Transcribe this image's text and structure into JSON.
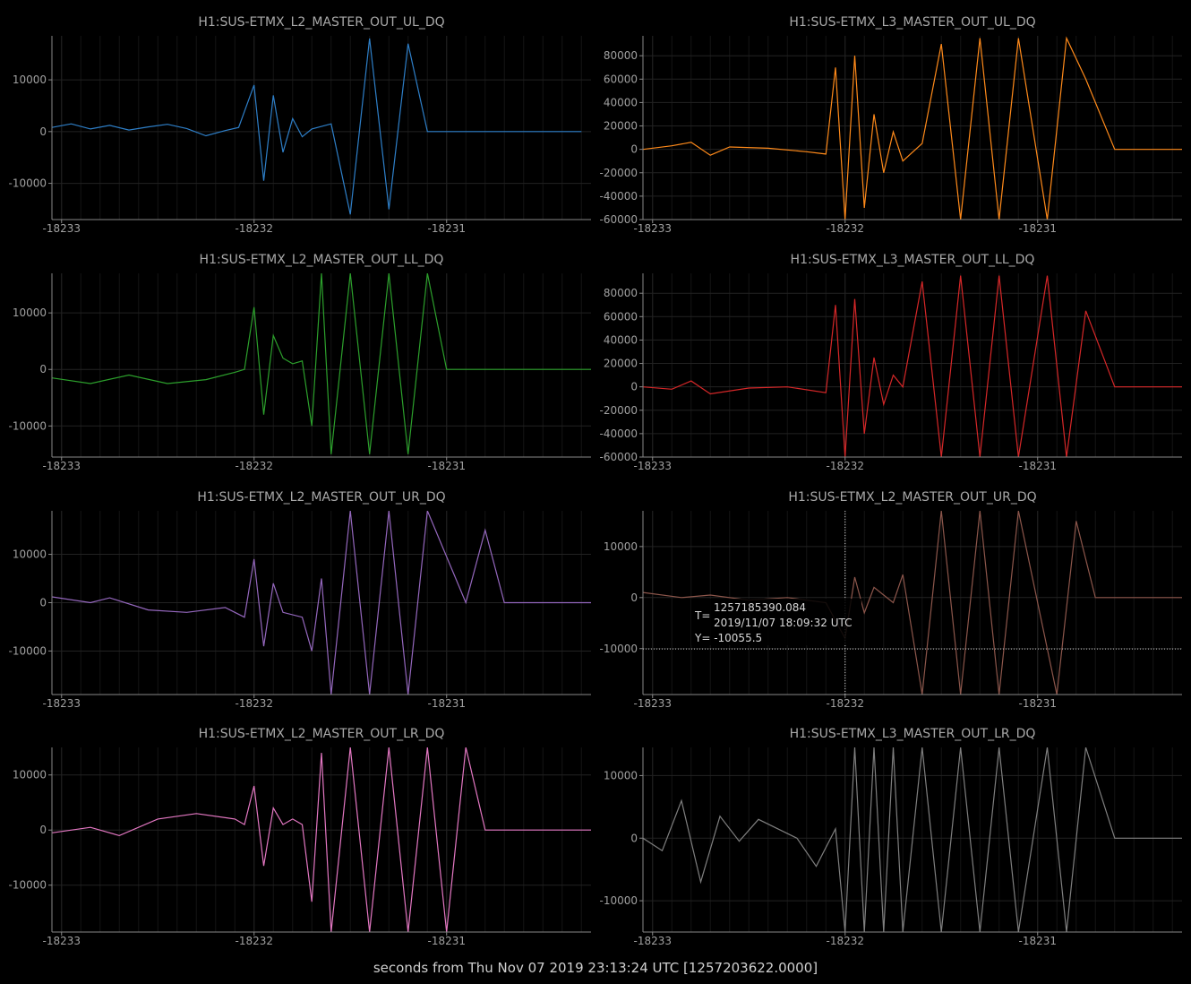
{
  "footer": {
    "text": "seconds from Thu Nov 07 2019 23:13:24 UTC [1257203622.0000]"
  },
  "chart_data": [
    {
      "type": "line",
      "title": "H1:SUS-ETMX_L2_MASTER_OUT_UL_DQ",
      "color": "#2e7fc8",
      "xlim": [
        -18233.05,
        -18230.25
      ],
      "ylim": [
        -17000,
        18500
      ],
      "xticks": [
        -18233,
        -18232,
        -18231
      ],
      "yticks": [
        -10000,
        0,
        10000
      ],
      "x": [
        -18233.05,
        -18232.95,
        -18232.85,
        -18232.75,
        -18232.65,
        -18232.55,
        -18232.45,
        -18232.35,
        -18232.25,
        -18232.15,
        -18232.08,
        -18232.0,
        -18231.95,
        -18231.9,
        -18231.85,
        -18231.8,
        -18231.75,
        -18231.7,
        -18231.6,
        -18231.5,
        -18231.4,
        -18231.3,
        -18231.2,
        -18231.1,
        -18230.9,
        -18230.7,
        -18230.5,
        -18230.3
      ],
      "y": [
        800,
        1500,
        500,
        1200,
        300,
        900,
        1400,
        600,
        -800,
        200,
        800,
        9000,
        -9500,
        7000,
        -4000,
        2500,
        -1000,
        500,
        1500,
        -16000,
        18000,
        -15000,
        17000,
        0,
        0,
        0,
        0,
        0
      ]
    },
    {
      "type": "line",
      "title": "H1:SUS-ETMX_L3_MASTER_OUT_UL_DQ",
      "color": "#ff8a1a",
      "xlim": [
        -18233.05,
        -18230.25
      ],
      "ylim": [
        -60000,
        97000
      ],
      "xticks": [
        -18233,
        -18232,
        -18231
      ],
      "yticks": [
        -60000,
        -40000,
        -20000,
        0,
        20000,
        40000,
        60000,
        80000
      ],
      "x": [
        -18233.05,
        -18232.9,
        -18232.8,
        -18232.7,
        -18232.6,
        -18232.4,
        -18232.2,
        -18232.1,
        -18232.05,
        -18232.0,
        -18231.95,
        -18231.9,
        -18231.85,
        -18231.8,
        -18231.75,
        -18231.7,
        -18231.6,
        -18231.5,
        -18231.4,
        -18231.3,
        -18231.2,
        -18231.1,
        -18230.95,
        -18230.85,
        -18230.75,
        -18230.6,
        -18230.4,
        -18230.25
      ],
      "y": [
        0,
        3000,
        6000,
        -5000,
        2000,
        1000,
        -2000,
        -4000,
        70000,
        -60000,
        80000,
        -50000,
        30000,
        -20000,
        15000,
        -10000,
        5000,
        90000,
        -60000,
        95000,
        -60000,
        95000,
        -60000,
        95000,
        60000,
        0,
        0,
        0
      ]
    },
    {
      "type": "line",
      "title": "H1:SUS-ETMX_L2_MASTER_OUT_LL_DQ",
      "color": "#2ca02c",
      "xlim": [
        -18233.05,
        -18230.25
      ],
      "ylim": [
        -15500,
        17000
      ],
      "xticks": [
        -18233,
        -18232,
        -18231
      ],
      "yticks": [
        -10000,
        0,
        10000
      ],
      "x": [
        -18233.05,
        -18232.85,
        -18232.65,
        -18232.45,
        -18232.25,
        -18232.1,
        -18232.05,
        -18232.0,
        -18231.95,
        -18231.9,
        -18231.85,
        -18231.8,
        -18231.75,
        -18231.7,
        -18231.65,
        -18231.6,
        -18231.5,
        -18231.4,
        -18231.3,
        -18231.2,
        -18231.1,
        -18231.0,
        -18230.8,
        -18230.6,
        -18230.4,
        -18230.25
      ],
      "y": [
        -1500,
        -2500,
        -1000,
        -2500,
        -1800,
        -500,
        0,
        11000,
        -8000,
        6000,
        2000,
        1000,
        1500,
        -10000,
        17000,
        -15000,
        17000,
        -15000,
        17000,
        -15000,
        17000,
        0,
        0,
        0,
        0,
        0
      ]
    },
    {
      "type": "line",
      "title": "H1:SUS-ETMX_L3_MASTER_OUT_LL_DQ",
      "color": "#d62728",
      "xlim": [
        -18233.05,
        -18230.25
      ],
      "ylim": [
        -60000,
        97000
      ],
      "xticks": [
        -18233,
        -18232,
        -18231
      ],
      "yticks": [
        -60000,
        -40000,
        -20000,
        0,
        20000,
        40000,
        60000,
        80000
      ],
      "x": [
        -18233.05,
        -18232.9,
        -18232.8,
        -18232.7,
        -18232.5,
        -18232.3,
        -18232.1,
        -18232.05,
        -18232.0,
        -18231.95,
        -18231.9,
        -18231.85,
        -18231.8,
        -18231.75,
        -18231.7,
        -18231.6,
        -18231.5,
        -18231.4,
        -18231.3,
        -18231.2,
        -18231.1,
        -18230.95,
        -18230.85,
        -18230.75,
        -18230.6,
        -18230.4,
        -18230.25
      ],
      "y": [
        0,
        -2000,
        5000,
        -6000,
        -1000,
        0,
        -5000,
        70000,
        -60000,
        75000,
        -40000,
        25000,
        -15000,
        10000,
        0,
        90000,
        -60000,
        95000,
        -60000,
        95000,
        -60000,
        95000,
        -60000,
        65000,
        0,
        0,
        0
      ]
    },
    {
      "type": "line",
      "title": "H1:SUS-ETMX_L2_MASTER_OUT_UR_DQ",
      "color": "#9467bd",
      "xlim": [
        -18233.05,
        -18230.25
      ],
      "ylim": [
        -19000,
        19000
      ],
      "xticks": [
        -18233,
        -18232,
        -18231
      ],
      "yticks": [
        -10000,
        0,
        10000
      ],
      "x": [
        -18233.05,
        -18232.85,
        -18232.75,
        -18232.55,
        -18232.35,
        -18232.15,
        -18232.05,
        -18232.0,
        -18231.95,
        -18231.9,
        -18231.85,
        -18231.75,
        -18231.7,
        -18231.65,
        -18231.6,
        -18231.5,
        -18231.4,
        -18231.3,
        -18231.2,
        -18231.1,
        -18230.9,
        -18230.8,
        -18230.7,
        -18230.6,
        -18230.4,
        -18230.25
      ],
      "y": [
        1200,
        0,
        1000,
        -1500,
        -2000,
        -1000,
        -3000,
        9000,
        -9000,
        4000,
        -2000,
        -3000,
        -10000,
        5000,
        -19000,
        19000,
        -19000,
        19000,
        -19000,
        19000,
        0,
        15000,
        0,
        0,
        0,
        0
      ]
    },
    {
      "type": "line",
      "title": "H1:SUS-ETMX_L2_MASTER_OUT_UR_DQ",
      "color": "#8c564b",
      "xlim": [
        -18233.05,
        -18230.25
      ],
      "ylim": [
        -19000,
        17000
      ],
      "xticks": [
        -18233,
        -18232,
        -18231
      ],
      "yticks": [
        -10000,
        0,
        10000
      ],
      "x": [
        -18233.05,
        -18232.85,
        -18232.7,
        -18232.5,
        -18232.3,
        -18232.1,
        -18232.0,
        -18231.95,
        -18231.9,
        -18231.85,
        -18231.75,
        -18231.7,
        -18231.6,
        -18231.5,
        -18231.4,
        -18231.3,
        -18231.2,
        -18231.1,
        -18230.9,
        -18230.8,
        -18230.7,
        -18230.6,
        -18230.4,
        -18230.25
      ],
      "y": [
        1000,
        0,
        500,
        -500,
        0,
        -1000,
        -8000,
        4000,
        -3000,
        2000,
        -1000,
        4500,
        -19000,
        17000,
        -19000,
        17000,
        -19000,
        17000,
        -19000,
        15000,
        0,
        0,
        0,
        0
      ]
    },
    {
      "type": "line",
      "title": "H1:SUS-ETMX_L2_MASTER_OUT_LR_DQ",
      "color": "#e377c2",
      "xlim": [
        -18233.05,
        -18230.25
      ],
      "ylim": [
        -18500,
        15000
      ],
      "xticks": [
        -18233,
        -18232,
        -18231
      ],
      "yticks": [
        -10000,
        0,
        10000
      ],
      "x": [
        -18233.05,
        -18232.85,
        -18232.7,
        -18232.5,
        -18232.3,
        -18232.1,
        -18232.05,
        -18232.0,
        -18231.95,
        -18231.9,
        -18231.85,
        -18231.8,
        -18231.75,
        -18231.7,
        -18231.65,
        -18231.6,
        -18231.5,
        -18231.4,
        -18231.3,
        -18231.2,
        -18231.1,
        -18231.0,
        -18230.9,
        -18230.8,
        -18230.6,
        -18230.25
      ],
      "y": [
        -500,
        500,
        -1000,
        2000,
        3000,
        2000,
        1000,
        8000,
        -6500,
        4000,
        1000,
        2000,
        1000,
        -13000,
        14000,
        -18500,
        15000,
        -18500,
        15000,
        -18500,
        15000,
        -18500,
        15000,
        0,
        0,
        0
      ]
    },
    {
      "type": "line",
      "title": "H1:SUS-ETMX_L3_MASTER_OUT_LR_DQ",
      "color": "#7f7f7f",
      "xlim": [
        -18233.05,
        -18230.25
      ],
      "ylim": [
        -15000,
        14500
      ],
      "xticks": [
        -18233,
        -18232,
        -18231
      ],
      "yticks": [
        -10000,
        0,
        10000
      ],
      "x": [
        -18233.05,
        -18232.95,
        -18232.85,
        -18232.75,
        -18232.65,
        -18232.55,
        -18232.45,
        -18232.35,
        -18232.25,
        -18232.15,
        -18232.05,
        -18232.0,
        -18231.95,
        -18231.9,
        -18231.85,
        -18231.8,
        -18231.75,
        -18231.7,
        -18231.6,
        -18231.5,
        -18231.4,
        -18231.3,
        -18231.2,
        -18231.1,
        -18230.95,
        -18230.85,
        -18230.75,
        -18230.6,
        -18230.4,
        -18230.25
      ],
      "y": [
        0,
        -2000,
        6000,
        -7000,
        3500,
        -500,
        3000,
        1500,
        0,
        -4500,
        1500,
        -15000,
        14500,
        -15000,
        14500,
        -15000,
        14500,
        -15000,
        14500,
        -15000,
        14500,
        -15000,
        14500,
        -15000,
        14500,
        -15000,
        14500,
        0,
        0,
        0
      ]
    }
  ],
  "tooltip": {
    "t_label": "T=",
    "gps": "1257185390.084",
    "utc": "2019/11/07 18:09:32 UTC",
    "y_text": "Y= -10055.5",
    "x_value": -18232.0,
    "y_value": -10055.5
  }
}
